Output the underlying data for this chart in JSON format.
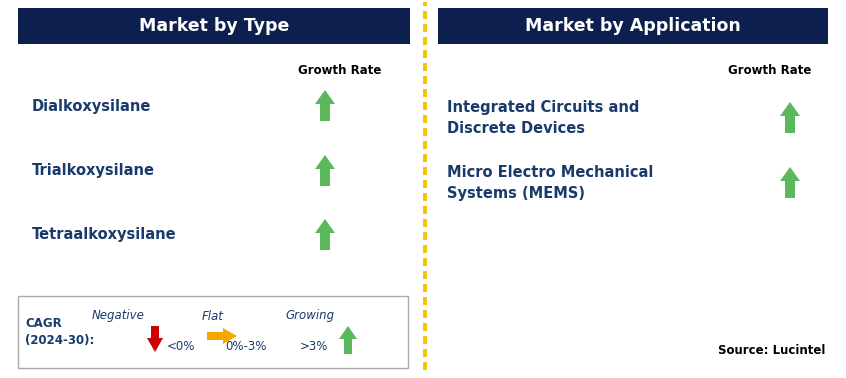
{
  "bg_color": "#ffffff",
  "dark_blue": "#0d1f4e",
  "header_text_color": "#ffffff",
  "label_color": "#1a3a6b",
  "arrow_green": "#5cb85c",
  "arrow_red": "#cc0000",
  "arrow_orange": "#f5a800",
  "legend_border": "#aaaaaa",
  "left_header": "Market by Type",
  "right_header": "Market by Application",
  "growth_rate_label": "Growth Rate",
  "left_items": [
    "Dialkoxysilane",
    "Trialkoxysilane",
    "Tetraalkoxysilane"
  ],
  "right_items": [
    "Integrated Circuits and\nDiscrete Devices",
    "Micro Electro Mechanical\nSystems (MEMS)"
  ],
  "legend_cagr_label": "CAGR\n(2024-30):",
  "legend_neg_label": "Negative",
  "legend_neg_value": "<0%",
  "legend_flat_label": "Flat",
  "legend_flat_value": "0%-3%",
  "legend_grow_label": "Growing",
  "legend_grow_value": ">3%",
  "source_text": "Source: Lucintel",
  "dashed_line_color": "#f5c400"
}
